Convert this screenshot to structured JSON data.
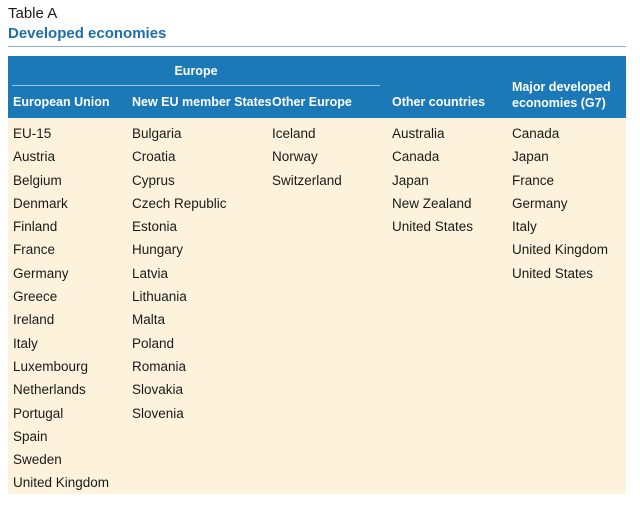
{
  "caption": {
    "label": "Table A",
    "title": "Developed economies"
  },
  "header": {
    "group": "Europe",
    "columns": [
      "European Union",
      "New EU member States",
      "Other Europe",
      "Other countries",
      "Major developed economies (G7)"
    ]
  },
  "colors": {
    "header_bg": "#1b79b8",
    "body_bg": "#fdf3dc",
    "title_text": "#1e6fa8"
  },
  "columns": {
    "european_union": [
      "EU-15",
      "Austria",
      "Belgium",
      "Denmark",
      "Finland",
      "France",
      "Germany",
      "Greece",
      "Ireland",
      "Italy",
      "Luxembourg",
      "Netherlands",
      "Portugal",
      "Spain",
      "Sweden",
      "United Kingdom"
    ],
    "new_eu_member_states": [
      "Bulgaria",
      "Croatia",
      "Cyprus",
      "Czech Republic",
      "Estonia",
      "Hungary",
      "Latvia",
      "Lithuania",
      "Malta",
      "Poland",
      "Romania",
      "Slovakia",
      "Slovenia"
    ],
    "other_europe": [
      "Iceland",
      "Norway",
      "Switzerland"
    ],
    "other_countries": [
      "Australia",
      "Canada",
      "Japan",
      "New Zealand",
      "United States"
    ],
    "g7": [
      "Canada",
      "Japan",
      "France",
      "Germany",
      "Italy",
      "United Kingdom",
      "United States"
    ]
  }
}
